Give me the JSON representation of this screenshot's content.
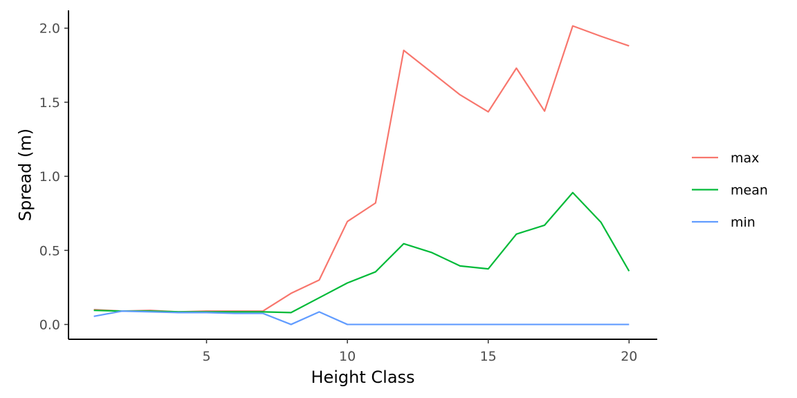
{
  "chart_data": {
    "type": "line",
    "title": "",
    "xlabel": "Height Class",
    "ylabel": "Spread (m)",
    "xlim": [
      0.1,
      21.0
    ],
    "ylim": [
      -0.1,
      2.12
    ],
    "x_ticks": [
      5,
      10,
      15,
      20
    ],
    "y_ticks": [
      0.0,
      0.5,
      1.0,
      1.5,
      2.0
    ],
    "x_tick_labels": [
      "5",
      "10",
      "15",
      "20"
    ],
    "y_tick_labels": [
      "0.0",
      "0.5",
      "1.0",
      "1.5",
      "2.0"
    ],
    "grid": false,
    "legend_position": "right",
    "x": [
      1,
      2,
      3,
      4,
      5,
      6,
      7,
      8,
      9,
      10,
      11,
      12,
      13,
      14,
      15,
      16,
      17,
      18,
      19,
      20
    ],
    "series": [
      {
        "name": "max",
        "color": "#F8766D",
        "values": [
          0.1,
          0.09,
          0.095,
          0.085,
          0.09,
          0.09,
          0.09,
          0.21,
          0.3,
          0.695,
          0.82,
          1.85,
          1.7,
          1.55,
          1.435,
          1.73,
          1.44,
          2.015,
          1.945,
          1.88
        ]
      },
      {
        "name": "mean",
        "color": "#00BA38",
        "values": [
          0.095,
          0.09,
          0.09,
          0.085,
          0.085,
          0.085,
          0.085,
          0.08,
          0.18,
          0.28,
          0.355,
          0.545,
          0.485,
          0.395,
          0.375,
          0.61,
          0.67,
          0.89,
          0.69,
          0.36
        ]
      },
      {
        "name": "min",
        "color": "#619CFF",
        "values": [
          0.055,
          0.09,
          0.085,
          0.08,
          0.08,
          0.075,
          0.075,
          0.0,
          0.085,
          0.0,
          0.0,
          0.0,
          0.0,
          0.0,
          0.0,
          0.0,
          0.0,
          0.0,
          0.0,
          0.0
        ]
      }
    ]
  }
}
